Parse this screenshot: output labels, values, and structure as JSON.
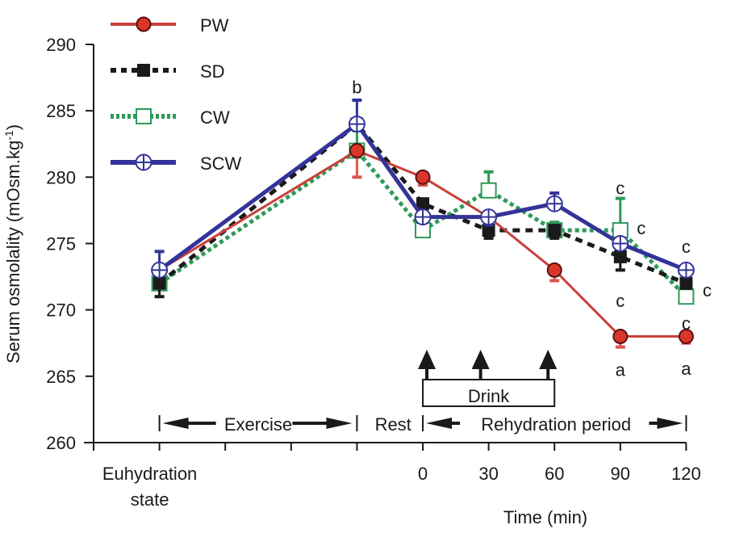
{
  "chart_data": {
    "type": "line",
    "title": "",
    "xlabel": "Time (min)",
    "ylabel": "Serum osmolality (mOsm.kg-1)",
    "ylabel_main": "Serum osmolality (mOsm.kg",
    "ylabel_sup": "-1",
    "ylabel_close": ")",
    "ylim": [
      260,
      290
    ],
    "yticks": [
      260,
      265,
      270,
      275,
      280,
      285,
      290
    ],
    "grid": false,
    "legend_position": "top-left",
    "x_positions": [
      "euhydration",
      "post-exercise",
      "0",
      "30",
      "60",
      "90",
      "120"
    ],
    "x_tick_labels": [
      "Euhydration state",
      "",
      "",
      "",
      "",
      "0",
      "30",
      "60",
      "90",
      "120"
    ],
    "euhydration_label_lines": [
      "Euhydration",
      "state"
    ],
    "series": [
      {
        "name": "PW",
        "color": "#c8403a",
        "marker": "filled-circle",
        "line": "solid",
        "values": [
          273,
          282,
          280,
          277,
          273,
          268,
          268
        ],
        "err_dir": [
          "none",
          "down",
          "down",
          "none",
          "down",
          "down",
          "down"
        ],
        "err": [
          0,
          2,
          0.6,
          0,
          0.8,
          0.8,
          0.5
        ]
      },
      {
        "name": "SD",
        "color": "#1a1a1a",
        "marker": "filled-square",
        "line": "dashed",
        "values": [
          272,
          284,
          278,
          276,
          276,
          274,
          272
        ],
        "err_dir": [
          "down",
          "none",
          "none",
          "down",
          "down",
          "down",
          "none"
        ],
        "err": [
          1,
          0,
          0,
          0.6,
          0.6,
          1,
          0
        ]
      },
      {
        "name": "CW",
        "color": "#2e9a5a",
        "marker": "open-square",
        "line": "dotted",
        "values": [
          272,
          282,
          276,
          279,
          276,
          276,
          271
        ],
        "err_dir": [
          "none",
          "up",
          "none",
          "up",
          "up",
          "up",
          "none"
        ],
        "err": [
          0,
          1.5,
          0,
          1.4,
          0.6,
          2.4,
          0
        ]
      },
      {
        "name": "SCW",
        "color": "#333399",
        "marker": "crossed-circle",
        "line": "solid",
        "values": [
          273,
          284,
          277,
          277,
          278,
          275,
          273
        ],
        "err_dir": [
          "up",
          "up",
          "none",
          "down",
          "up",
          "none",
          "none"
        ],
        "err": [
          1.4,
          1.8,
          0,
          0.6,
          0.8,
          0,
          0
        ]
      }
    ],
    "annotations": [
      {
        "text": "b",
        "x": "post-exercise",
        "y": 286.8
      },
      {
        "text": "c",
        "x": "90",
        "y": 279.2
      },
      {
        "text": "c",
        "x": "90",
        "y": 276.2,
        "dx": 1
      },
      {
        "text": "c",
        "x": "90",
        "y": 270.7
      },
      {
        "text": "c",
        "x": "120",
        "y": 274.8
      },
      {
        "text": "c",
        "x": "120",
        "y": 271.5,
        "dx": 1
      },
      {
        "text": "c",
        "x": "120",
        "y": 269.0
      },
      {
        "text": "a",
        "x": "90",
        "y": 265.5
      },
      {
        "text": "a",
        "x": "120",
        "y": 265.6
      }
    ],
    "phases": {
      "exercise": "Exercise",
      "rest": "Rest",
      "rehydration": "Rehydration period",
      "drink": "Drink"
    },
    "drink_times": [
      "0",
      "30",
      "60"
    ]
  }
}
